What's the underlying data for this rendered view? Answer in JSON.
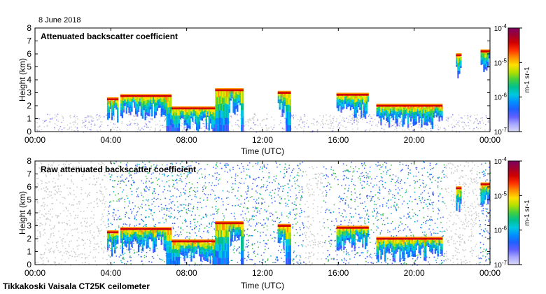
{
  "date_label": "8 June 2018",
  "footer": "Tikkakoski Vaisala CT25K ceilometer",
  "colorbar": {
    "tick_labels": [
      "10-4",
      "10-5",
      "10-6",
      "10-7"
    ],
    "unit_label": "m-1 sr-1",
    "colors": [
      "#d8d8f8",
      "#a8a8ff",
      "#6060ff",
      "#2060ff",
      "#0090ff",
      "#00c8e0",
      "#00c090",
      "#40d040",
      "#b0e000",
      "#ffe000",
      "#ff9000",
      "#ff3000",
      "#d00000",
      "#a00030",
      "#800060"
    ]
  },
  "chart_data": [
    {
      "type": "heatmap",
      "title": "Attenuated backscatter coefficient",
      "xlabel": "Time (UTC)",
      "ylabel": "Height (km)",
      "x_ticks": [
        "00:00",
        "04:00",
        "08:00",
        "12:00",
        "16:00",
        "20:00",
        "00:00"
      ],
      "y_ticks": [
        "0",
        "1",
        "2",
        "3",
        "4",
        "5",
        "6",
        "7",
        "8"
      ],
      "xlim_hours": [
        0,
        24
      ],
      "ylim_km": [
        0,
        8
      ],
      "layers": [
        {
          "name": "cloud-base-1",
          "start_h": 3.8,
          "end_h": 4.4,
          "height_km": 2.5
        },
        {
          "name": "cloud-base-2",
          "start_h": 4.5,
          "end_h": 7.2,
          "height_km": 2.75
        },
        {
          "name": "cloud-base-3",
          "start_h": 7.2,
          "end_h": 9.5,
          "height_km": 1.8
        },
        {
          "name": "cloud-base-4",
          "start_h": 9.5,
          "end_h": 11.0,
          "height_km": 3.2
        },
        {
          "name": "cloud-base-5",
          "start_h": 12.8,
          "end_h": 13.5,
          "height_km": 3.0
        },
        {
          "name": "cloud-base-6",
          "start_h": 15.9,
          "end_h": 17.6,
          "height_km": 2.85
        },
        {
          "name": "cloud-base-7",
          "start_h": 18.0,
          "end_h": 21.5,
          "height_km": 2.0
        },
        {
          "name": "cloud-base-8",
          "start_h": 22.2,
          "end_h": 22.5,
          "height_km": 5.9
        },
        {
          "name": "cloud-base-9",
          "start_h": 23.5,
          "end_h": 24.0,
          "height_km": 6.2
        }
      ]
    },
    {
      "type": "heatmap",
      "title": "Raw attenuated backscatter coefficient",
      "xlabel": "Time (UTC)",
      "ylabel": "Height (km)",
      "x_ticks": [
        "00:00",
        "04:00",
        "08:00",
        "12:00",
        "16:00",
        "20:00",
        "00:00"
      ],
      "y_ticks": [
        "0",
        "1",
        "2",
        "3",
        "4",
        "5",
        "6",
        "7",
        "8"
      ],
      "xlim_hours": [
        0,
        24
      ],
      "ylim_km": [
        0,
        8
      ],
      "layers": [
        {
          "name": "cloud-base-1",
          "start_h": 3.8,
          "end_h": 4.4,
          "height_km": 2.5
        },
        {
          "name": "cloud-base-2",
          "start_h": 4.5,
          "end_h": 7.2,
          "height_km": 2.75
        },
        {
          "name": "cloud-base-3",
          "start_h": 7.2,
          "end_h": 9.5,
          "height_km": 1.8
        },
        {
          "name": "cloud-base-4",
          "start_h": 9.5,
          "end_h": 11.0,
          "height_km": 3.2
        },
        {
          "name": "cloud-base-5",
          "start_h": 12.8,
          "end_h": 13.5,
          "height_km": 3.0
        },
        {
          "name": "cloud-base-6",
          "start_h": 15.9,
          "end_h": 17.6,
          "height_km": 2.85
        },
        {
          "name": "cloud-base-7",
          "start_h": 18.0,
          "end_h": 21.5,
          "height_km": 2.0
        },
        {
          "name": "cloud-base-8",
          "start_h": 22.2,
          "end_h": 22.5,
          "height_km": 5.9
        },
        {
          "name": "cloud-base-9",
          "start_h": 23.5,
          "end_h": 24.0,
          "height_km": 6.2
        }
      ]
    }
  ]
}
